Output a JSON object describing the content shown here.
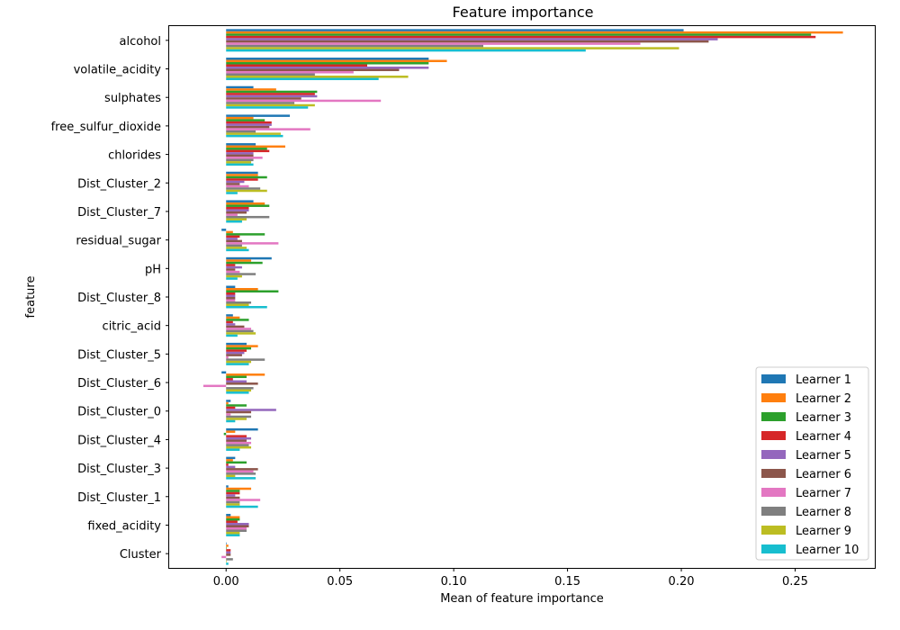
{
  "chart_data": {
    "type": "bar",
    "orientation": "horizontal",
    "title": "Feature importance",
    "xlabel": "Mean of feature importance",
    "ylabel": "feature",
    "xlim": [
      -0.025,
      0.285
    ],
    "xticks": [
      "0.00",
      "0.05",
      "0.10",
      "0.15",
      "0.20",
      "0.25"
    ],
    "xtick_values": [
      0,
      0.05,
      0.1,
      0.15,
      0.2,
      0.25
    ],
    "legend_position": "lower right",
    "categories": [
      "alcohol",
      "volatile_acidity",
      "sulphates",
      "free_sulfur_dioxide",
      "chlorides",
      "Dist_Cluster_2",
      "Dist_Cluster_7",
      "residual_sugar",
      "pH",
      "Dist_Cluster_8",
      "citric_acid",
      "Dist_Cluster_5",
      "Dist_Cluster_6",
      "Dist_Cluster_0",
      "Dist_Cluster_4",
      "Dist_Cluster_3",
      "Dist_Cluster_1",
      "fixed_acidity",
      "Cluster"
    ],
    "series": [
      {
        "name": "Learner 1",
        "color": "#1f77b4",
        "values": [
          0.201,
          0.089,
          0.012,
          0.028,
          0.013,
          0.014,
          0.012,
          -0.002,
          0.02,
          0.004,
          0.003,
          0.009,
          -0.002,
          0.002,
          0.014,
          0.004,
          0.001,
          0.002,
          0.0
        ]
      },
      {
        "name": "Learner 2",
        "color": "#ff7f0e",
        "values": [
          0.271,
          0.097,
          0.022,
          0.012,
          0.026,
          0.014,
          0.017,
          0.003,
          0.011,
          0.014,
          0.006,
          0.014,
          0.017,
          0.001,
          0.004,
          0.003,
          0.011,
          0.006,
          0.001
        ]
      },
      {
        "name": "Learner 3",
        "color": "#2ca02c",
        "values": [
          0.257,
          0.089,
          0.04,
          0.017,
          0.018,
          0.018,
          0.019,
          0.017,
          0.016,
          0.023,
          0.01,
          0.011,
          0.009,
          0.009,
          -0.001,
          0.009,
          0.006,
          0.006,
          0.0
        ]
      },
      {
        "name": "Learner 4",
        "color": "#d62728",
        "values": [
          0.259,
          0.062,
          0.039,
          0.02,
          0.019,
          0.014,
          0.01,
          0.006,
          0.004,
          0.004,
          0.003,
          0.009,
          0.003,
          0.004,
          0.009,
          0.001,
          0.006,
          0.005,
          0.002
        ]
      },
      {
        "name": "Learner 5",
        "color": "#9467bd",
        "values": [
          0.216,
          0.089,
          0.04,
          0.02,
          0.012,
          0.008,
          0.01,
          0.005,
          0.007,
          0.004,
          0.004,
          0.008,
          0.009,
          0.022,
          0.011,
          0.004,
          0.004,
          0.01,
          0.002
        ]
      },
      {
        "name": "Learner 6",
        "color": "#8c564b",
        "values": [
          0.212,
          0.076,
          0.033,
          0.019,
          0.012,
          0.006,
          0.009,
          0.007,
          0.004,
          0.004,
          0.008,
          0.007,
          0.014,
          0.011,
          0.009,
          0.014,
          0.006,
          0.01,
          0.002
        ]
      },
      {
        "name": "Learner 7",
        "color": "#e377c2",
        "values": [
          0.182,
          0.056,
          0.068,
          0.037,
          0.016,
          0.01,
          0.005,
          0.023,
          0.006,
          0.004,
          0.011,
          0.001,
          -0.01,
          0.002,
          0.011,
          0.012,
          0.015,
          0.009,
          -0.002
        ]
      },
      {
        "name": "Learner 8",
        "color": "#7f7f7f",
        "values": [
          0.113,
          0.039,
          0.03,
          0.013,
          0.012,
          0.015,
          0.019,
          0.007,
          0.013,
          0.011,
          0.012,
          0.017,
          0.012,
          0.011,
          0.01,
          0.013,
          0.006,
          0.009,
          0.003
        ]
      },
      {
        "name": "Learner 9",
        "color": "#bcbd22",
        "values": [
          0.199,
          0.08,
          0.039,
          0.024,
          0.011,
          0.018,
          0.009,
          0.009,
          0.007,
          0.01,
          0.013,
          0.011,
          0.011,
          0.009,
          0.011,
          0.004,
          0.006,
          0.006,
          0.0
        ]
      },
      {
        "name": "Learner 10",
        "color": "#17becf",
        "values": [
          0.158,
          0.067,
          0.036,
          0.025,
          0.012,
          0.005,
          0.007,
          0.01,
          0.005,
          0.018,
          0.005,
          0.01,
          0.01,
          0.004,
          0.006,
          0.013,
          0.014,
          0.006,
          0.001
        ]
      }
    ]
  }
}
